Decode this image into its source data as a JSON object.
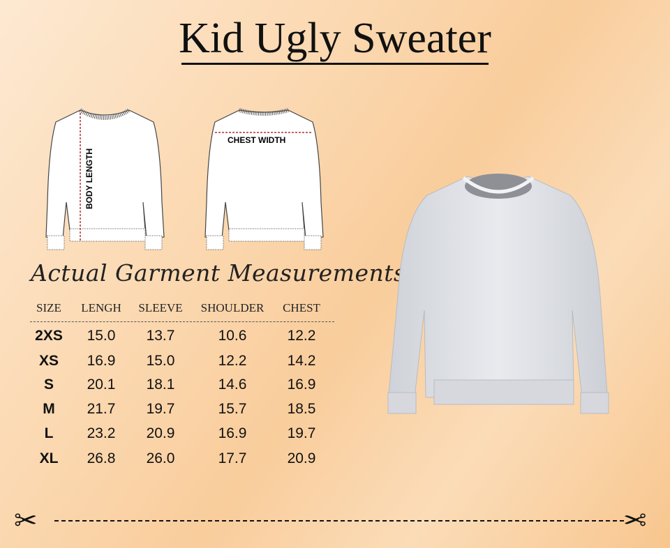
{
  "title": "Kid Ugly Sweater",
  "sketch": {
    "front_label": "BODY LENGTH",
    "back_label": "CHEST WIDTH"
  },
  "heading": "Actual Garment Measurements",
  "table": {
    "headers": [
      "SIZE",
      "LENGH",
      "SLEEVE",
      "SHOULDER",
      "CHEST"
    ],
    "rows": [
      [
        "2XS",
        "15.0",
        "13.7",
        "10.6",
        "12.2"
      ],
      [
        "XS",
        "16.9",
        "15.0",
        "12.2",
        "14.2"
      ],
      [
        "S",
        "20.1",
        "18.1",
        "14.6",
        "16.9"
      ],
      [
        "M",
        "21.7",
        "19.7",
        "15.7",
        "18.5"
      ],
      [
        "L",
        "23.2",
        "20.9",
        "16.9",
        "19.7"
      ],
      [
        "XL",
        "26.8",
        "26.0",
        "17.7",
        "20.9"
      ]
    ]
  },
  "colors": {
    "background": "#fbd8b0",
    "text": "#111111",
    "sweater": "#dfe1e6",
    "measure_line": "#b03030"
  }
}
